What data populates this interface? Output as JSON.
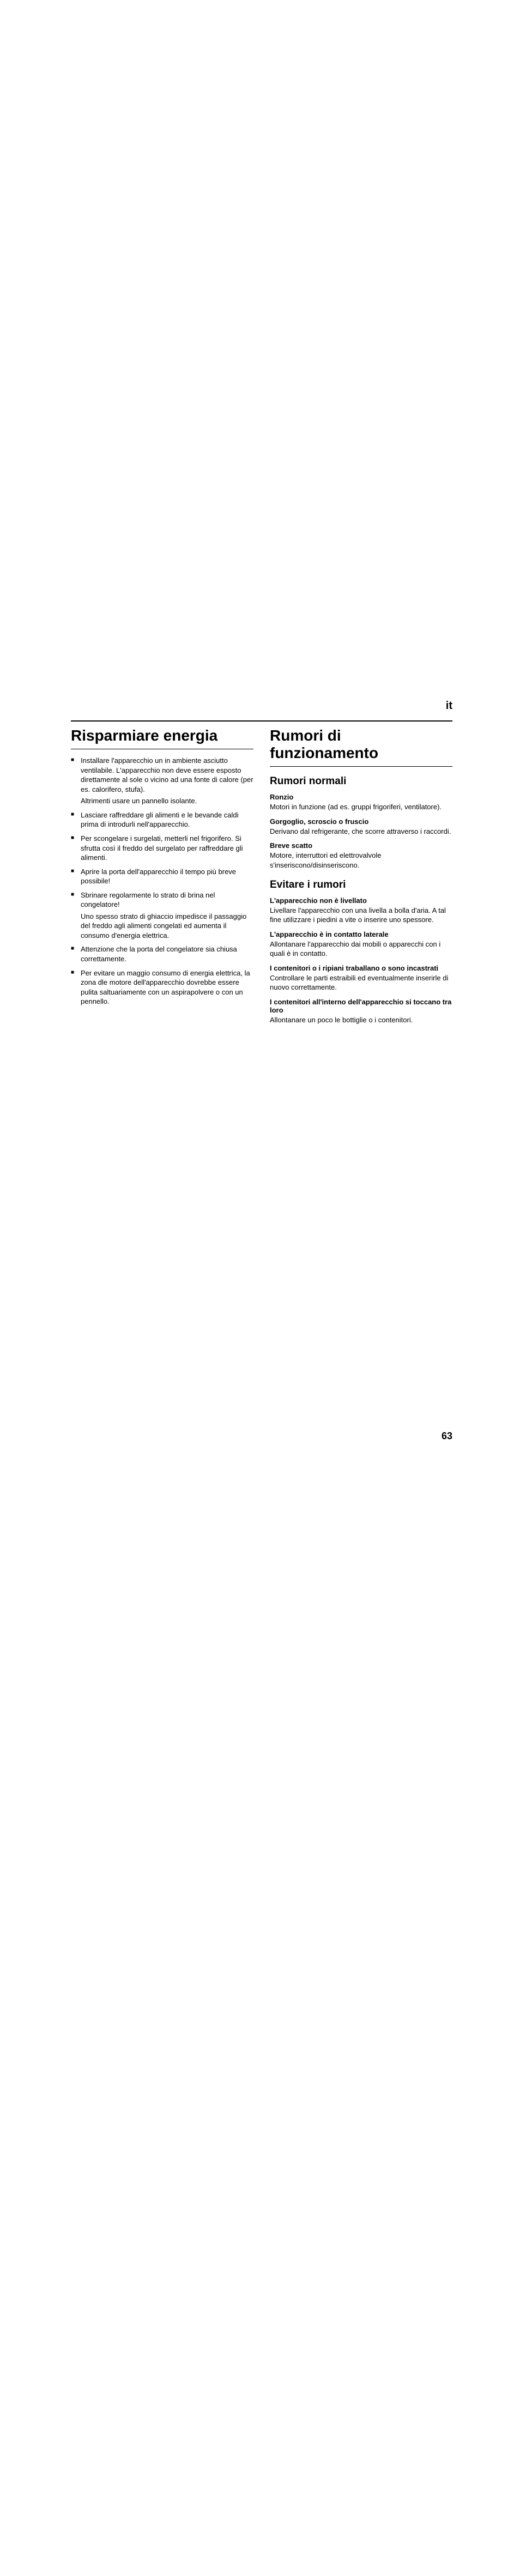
{
  "lang_marker": "it",
  "page_number": "63",
  "left": {
    "title": "Risparmiare energia",
    "items": [
      {
        "text": "Installare l'apparecchio un in ambiente asciutto ventilabile. L'apparecchio non deve essere esposto direttamente al sole o vicino ad una fonte di calore (per es. calorifero, stufa).",
        "sub": "Altrimenti usare un pannello isolante."
      },
      {
        "text": "Lasciare raffreddare gli alimenti e le bevande caldi prima di introdurli nell'apparecchio."
      },
      {
        "text": "Per scongelare i surgelati, metterli nel frigorifero. Si sfrutta così il freddo del surgelato per raffreddare gli alimenti."
      },
      {
        "text": "Aprire la porta dell'apparecchio il tempo più breve possibile!"
      },
      {
        "text": "Sbrinare regolarmente lo strato di brina nel congelatore!",
        "sub": "Uno spesso strato di ghiaccio impedisce il passaggio del freddo agli alimenti congelati ed aumenta il consumo d'energia elettrica."
      },
      {
        "text": "Attenzione che la porta del congelatore sia chiusa correttamente."
      },
      {
        "text": "Per evitare un maggio consumo di energia elettrica, la zona dle motore dell'apparecchio dovrebbe essere pulita saltuariamente con un aspirapolvere o con un pennello."
      }
    ]
  },
  "right": {
    "title": "Rumori di funzionamento",
    "section1": {
      "heading": "Rumori normali",
      "items": [
        {
          "label": "Ronzio",
          "text": "Motori in funzione (ad es. gruppi frigoriferi, ventilatore)."
        },
        {
          "label": "Gorgoglio, scroscio o fruscio",
          "text": "Derivano dal refrigerante, che scorre attraverso i raccordi."
        },
        {
          "label": "Breve scatto",
          "text": "Motore, interruttori ed elettrovalvole s'inseriscono/disinseriscono."
        }
      ]
    },
    "section2": {
      "heading": "Evitare i rumori",
      "items": [
        {
          "label": "L'apparecchio non è livellato",
          "text": "Livellare l'apparecchio con una livella a bolla d'aria. A tal fine utilizzare i piedini a vite o inserire uno spessore."
        },
        {
          "label": "L'apparecchio è in contatto laterale",
          "text": "Allontanare l'apparecchio dai mobili o apparecchi con i quali è in contatto."
        },
        {
          "label": "I contenitori o i ripiani traballano o sono incastrati",
          "text": "Controllare le parti estraibili ed eventualmente inserirle di nuovo correttamente."
        },
        {
          "label": "I contenitori all'interno dell'apparecchio si toccano tra loro",
          "text": "Allontanare un poco le bottiglie o i contenitori."
        }
      ]
    }
  }
}
